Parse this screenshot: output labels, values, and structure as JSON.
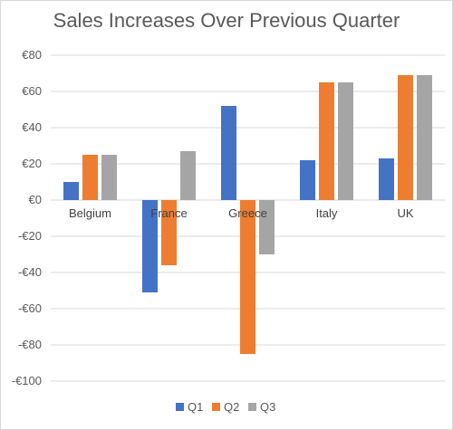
{
  "chart_data": {
    "type": "bar",
    "title": "Sales Increases Over Previous Quarter",
    "categories": [
      "Belgium",
      "France",
      "Greece",
      "Italy",
      "UK"
    ],
    "series": [
      {
        "name": "Q1",
        "color": "#4472C4",
        "values": [
          10,
          -51,
          52,
          22,
          23
        ]
      },
      {
        "name": "Q2",
        "color": "#ED7D31",
        "values": [
          25,
          -36,
          -85,
          65,
          69
        ]
      },
      {
        "name": "Q3",
        "color": "#A5A5A5",
        "values": [
          25,
          27,
          -30,
          65,
          69
        ]
      }
    ],
    "ylim": [
      -100,
      80
    ],
    "yticks": [
      80,
      60,
      40,
      20,
      0,
      -20,
      -40,
      -60,
      -80,
      -100
    ],
    "ytick_labels": [
      "€80",
      "€60",
      "€40",
      "€20",
      "€0",
      "-€20",
      "-€40",
      "-€60",
      "-€80",
      "-€100"
    ],
    "grid": true,
    "legend_position": "bottom",
    "xlabel": "",
    "ylabel": ""
  }
}
